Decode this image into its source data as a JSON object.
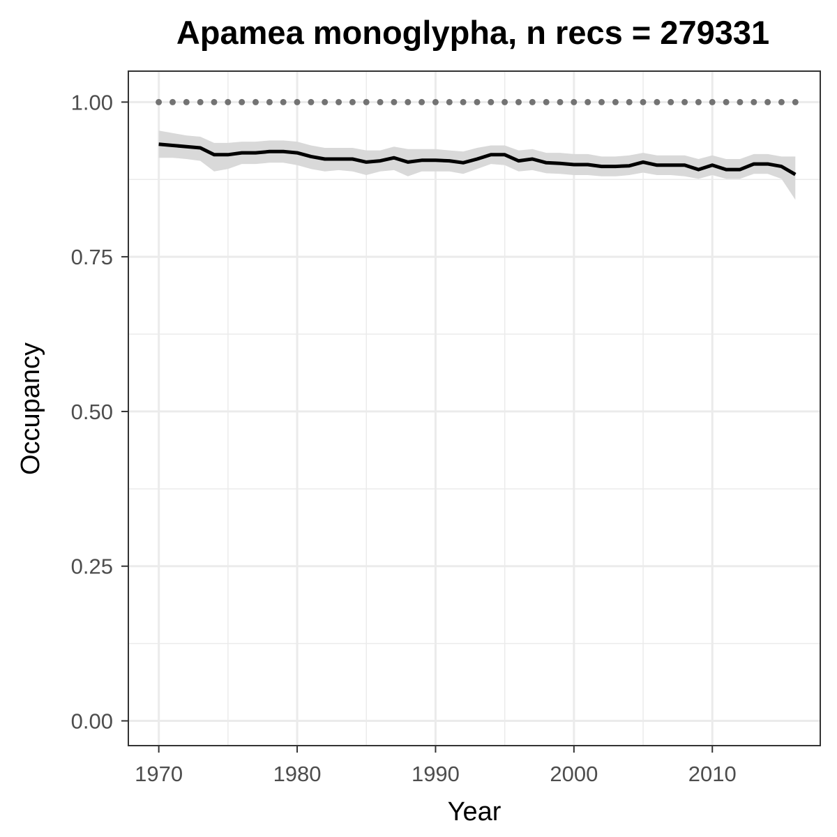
{
  "chart_data": {
    "type": "line",
    "title": "Apamea monoglypha, n recs = 279331",
    "xlabel": "Year",
    "ylabel": "Occupancy",
    "xlim": [
      1967.8,
      2017.8
    ],
    "ylim": [
      -0.04,
      1.05
    ],
    "x_ticks": [
      1970,
      1980,
      1990,
      2000,
      2010
    ],
    "x_tick_labels": [
      "1970",
      "1980",
      "1990",
      "2000",
      "2010"
    ],
    "y_ticks": [
      0,
      0.25,
      0.5,
      0.75,
      1.0
    ],
    "y_tick_labels": [
      "0.00",
      "0.25",
      "0.50",
      "0.75",
      "1.00"
    ],
    "grid": true,
    "legend": "none",
    "colors": {
      "line": "#000000",
      "ribbon": "#d9d9d9",
      "reference": "#737373",
      "grid": "#ebebeb",
      "border": "#333333"
    },
    "series": [
      {
        "role": "estimate",
        "x": [
          1970,
          1971,
          1972,
          1973,
          1974,
          1975,
          1976,
          1977,
          1978,
          1979,
          1980,
          1981,
          1982,
          1983,
          1984,
          1985,
          1986,
          1987,
          1988,
          1989,
          1990,
          1991,
          1992,
          1993,
          1994,
          1995,
          1996,
          1997,
          1998,
          1999,
          2000,
          2001,
          2002,
          2003,
          2004,
          2005,
          2006,
          2007,
          2008,
          2009,
          2010,
          2011,
          2012,
          2013,
          2014,
          2015,
          2016
        ],
        "y": [
          0.932,
          0.93,
          0.928,
          0.926,
          0.915,
          0.915,
          0.918,
          0.918,
          0.92,
          0.92,
          0.918,
          0.912,
          0.908,
          0.908,
          0.908,
          0.903,
          0.905,
          0.91,
          0.903,
          0.906,
          0.906,
          0.905,
          0.902,
          0.908,
          0.915,
          0.915,
          0.905,
          0.908,
          0.902,
          0.901,
          0.899,
          0.899,
          0.896,
          0.896,
          0.897,
          0.903,
          0.898,
          0.898,
          0.898,
          0.891,
          0.898,
          0.891,
          0.891,
          0.9,
          0.9,
          0.896,
          0.883
        ]
      },
      {
        "role": "credible-interval",
        "x": [
          1970,
          1971,
          1972,
          1973,
          1974,
          1975,
          1976,
          1977,
          1978,
          1979,
          1980,
          1981,
          1982,
          1983,
          1984,
          1985,
          1986,
          1987,
          1988,
          1989,
          1990,
          1991,
          1992,
          1993,
          1994,
          1995,
          1996,
          1997,
          1998,
          1999,
          2000,
          2001,
          2002,
          2003,
          2004,
          2005,
          2006,
          2007,
          2008,
          2009,
          2010,
          2011,
          2012,
          2013,
          2014,
          2015,
          2016
        ],
        "lower": [
          0.91,
          0.91,
          0.908,
          0.905,
          0.888,
          0.892,
          0.9,
          0.9,
          0.902,
          0.902,
          0.898,
          0.892,
          0.888,
          0.89,
          0.888,
          0.882,
          0.888,
          0.89,
          0.88,
          0.888,
          0.888,
          0.888,
          0.884,
          0.892,
          0.9,
          0.898,
          0.888,
          0.89,
          0.885,
          0.884,
          0.882,
          0.882,
          0.88,
          0.88,
          0.882,
          0.886,
          0.882,
          0.882,
          0.88,
          0.876,
          0.882,
          0.876,
          0.876,
          0.884,
          0.884,
          0.876,
          0.842
        ],
        "upper": [
          0.954,
          0.95,
          0.946,
          0.944,
          0.934,
          0.934,
          0.936,
          0.936,
          0.938,
          0.938,
          0.936,
          0.93,
          0.926,
          0.926,
          0.926,
          0.922,
          0.922,
          0.928,
          0.924,
          0.924,
          0.924,
          0.922,
          0.92,
          0.926,
          0.93,
          0.93,
          0.922,
          0.924,
          0.918,
          0.918,
          0.916,
          0.916,
          0.912,
          0.912,
          0.914,
          0.918,
          0.914,
          0.914,
          0.914,
          0.908,
          0.914,
          0.908,
          0.908,
          0.916,
          0.916,
          0.912,
          0.912
        ]
      },
      {
        "role": "reference",
        "x": [
          1970,
          1971,
          1972,
          1973,
          1974,
          1975,
          1976,
          1977,
          1978,
          1979,
          1980,
          1981,
          1982,
          1983,
          1984,
          1985,
          1986,
          1987,
          1988,
          1989,
          1990,
          1991,
          1992,
          1993,
          1994,
          1995,
          1996,
          1997,
          1998,
          1999,
          2000,
          2001,
          2002,
          2003,
          2004,
          2005,
          2006,
          2007,
          2008,
          2009,
          2010,
          2011,
          2012,
          2013,
          2014,
          2015,
          2016
        ],
        "y": [
          1,
          1,
          1,
          1,
          1,
          1,
          1,
          1,
          1,
          1,
          1,
          1,
          1,
          1,
          1,
          1,
          1,
          1,
          1,
          1,
          1,
          1,
          1,
          1,
          1,
          1,
          1,
          1,
          1,
          1,
          1,
          1,
          1,
          1,
          1,
          1,
          1,
          1,
          1,
          1,
          1,
          1,
          1,
          1,
          1,
          1,
          1
        ]
      }
    ]
  }
}
